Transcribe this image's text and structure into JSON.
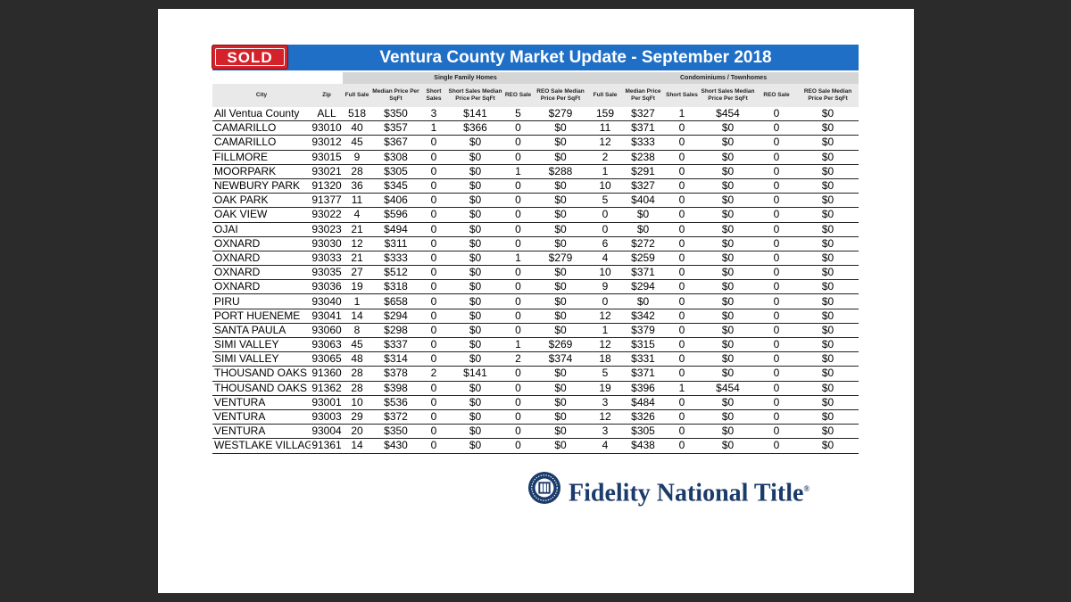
{
  "header": {
    "badge": "SOLD",
    "title": "Ventura County Market Update - September 2018"
  },
  "table": {
    "group_headers": [
      "Single Family Homes",
      "Condominiums / Townhomes"
    ],
    "columns": [
      "City",
      "Zip",
      "Full Sale",
      "Median Price Per SqFt",
      "Short Sales",
      "Short Sales Median Price Per SqFt",
      "REO Sale",
      "REO Sale Median Price Per SqFt",
      "Full Sale",
      "Median Price Per SqFt",
      "Short Sales",
      "Short Sales Median Price Per SqFt",
      "REO Sale",
      "REO Sale Median Price Per SqFt"
    ],
    "rows": [
      [
        "All Ventua County",
        "ALL",
        "518",
        "$350",
        "3",
        "$141",
        "5",
        "$279",
        "159",
        "$327",
        "1",
        "$454",
        "0",
        "$0"
      ],
      [
        "CAMARILLO",
        "93010",
        "40",
        "$357",
        "1",
        "$366",
        "0",
        "$0",
        "11",
        "$371",
        "0",
        "$0",
        "0",
        "$0"
      ],
      [
        "CAMARILLO",
        "93012",
        "45",
        "$367",
        "0",
        "$0",
        "0",
        "$0",
        "12",
        "$333",
        "0",
        "$0",
        "0",
        "$0"
      ],
      [
        "FILLMORE",
        "93015",
        "9",
        "$308",
        "0",
        "$0",
        "0",
        "$0",
        "2",
        "$238",
        "0",
        "$0",
        "0",
        "$0"
      ],
      [
        "MOORPARK",
        "93021",
        "28",
        "$305",
        "0",
        "$0",
        "1",
        "$288",
        "1",
        "$291",
        "0",
        "$0",
        "0",
        "$0"
      ],
      [
        "NEWBURY PARK",
        "91320",
        "36",
        "$345",
        "0",
        "$0",
        "0",
        "$0",
        "10",
        "$327",
        "0",
        "$0",
        "0",
        "$0"
      ],
      [
        "OAK PARK",
        "91377",
        "11",
        "$406",
        "0",
        "$0",
        "0",
        "$0",
        "5",
        "$404",
        "0",
        "$0",
        "0",
        "$0"
      ],
      [
        "OAK VIEW",
        "93022",
        "4",
        "$596",
        "0",
        "$0",
        "0",
        "$0",
        "0",
        "$0",
        "0",
        "$0",
        "0",
        "$0"
      ],
      [
        "OJAI",
        "93023",
        "21",
        "$494",
        "0",
        "$0",
        "0",
        "$0",
        "0",
        "$0",
        "0",
        "$0",
        "0",
        "$0"
      ],
      [
        "OXNARD",
        "93030",
        "12",
        "$311",
        "0",
        "$0",
        "0",
        "$0",
        "6",
        "$272",
        "0",
        "$0",
        "0",
        "$0"
      ],
      [
        "OXNARD",
        "93033",
        "21",
        "$333",
        "0",
        "$0",
        "1",
        "$279",
        "4",
        "$259",
        "0",
        "$0",
        "0",
        "$0"
      ],
      [
        "OXNARD",
        "93035",
        "27",
        "$512",
        "0",
        "$0",
        "0",
        "$0",
        "10",
        "$371",
        "0",
        "$0",
        "0",
        "$0"
      ],
      [
        "OXNARD",
        "93036",
        "19",
        "$318",
        "0",
        "$0",
        "0",
        "$0",
        "9",
        "$294",
        "0",
        "$0",
        "0",
        "$0"
      ],
      [
        "PIRU",
        "93040",
        "1",
        "$658",
        "0",
        "$0",
        "0",
        "$0",
        "0",
        "$0",
        "0",
        "$0",
        "0",
        "$0"
      ],
      [
        "PORT HUENEME",
        "93041",
        "14",
        "$294",
        "0",
        "$0",
        "0",
        "$0",
        "12",
        "$342",
        "0",
        "$0",
        "0",
        "$0"
      ],
      [
        "SANTA PAULA",
        "93060",
        "8",
        "$298",
        "0",
        "$0",
        "0",
        "$0",
        "1",
        "$379",
        "0",
        "$0",
        "0",
        "$0"
      ],
      [
        "SIMI VALLEY",
        "93063",
        "45",
        "$337",
        "0",
        "$0",
        "1",
        "$269",
        "12",
        "$315",
        "0",
        "$0",
        "0",
        "$0"
      ],
      [
        "SIMI VALLEY",
        "93065",
        "48",
        "$314",
        "0",
        "$0",
        "2",
        "$374",
        "18",
        "$331",
        "0",
        "$0",
        "0",
        "$0"
      ],
      [
        "THOUSAND OAKS",
        "91360",
        "28",
        "$378",
        "2",
        "$141",
        "0",
        "$0",
        "5",
        "$371",
        "0",
        "$0",
        "0",
        "$0"
      ],
      [
        "THOUSAND OAKS",
        "91362",
        "28",
        "$398",
        "0",
        "$0",
        "0",
        "$0",
        "19",
        "$396",
        "1",
        "$454",
        "0",
        "$0"
      ],
      [
        "VENTURA",
        "93001",
        "10",
        "$536",
        "0",
        "$0",
        "0",
        "$0",
        "3",
        "$484",
        "0",
        "$0",
        "0",
        "$0"
      ],
      [
        "VENTURA",
        "93003",
        "29",
        "$372",
        "0",
        "$0",
        "0",
        "$0",
        "12",
        "$326",
        "0",
        "$0",
        "0",
        "$0"
      ],
      [
        "VENTURA",
        "93004",
        "20",
        "$350",
        "0",
        "$0",
        "0",
        "$0",
        "3",
        "$305",
        "0",
        "$0",
        "0",
        "$0"
      ],
      [
        "WESTLAKE VILLAGE",
        "91361",
        "14",
        "$430",
        "0",
        "$0",
        "0",
        "$0",
        "4",
        "$438",
        "0",
        "$0",
        "0",
        "$0"
      ]
    ]
  },
  "footer": {
    "brand": "Fidelity National Title",
    "brand_mark": "®",
    "seal_icon": "fidelity-seal-icon",
    "brand_color": "#1b3b6b"
  }
}
